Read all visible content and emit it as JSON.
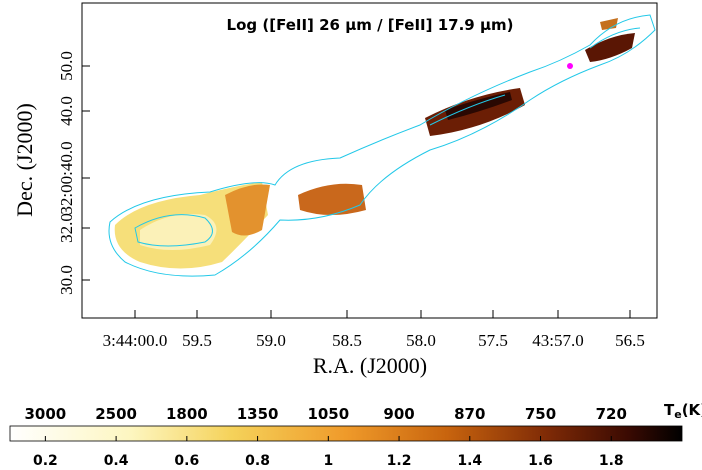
{
  "chart_data": {
    "type": "image",
    "title": "Log ([FeII] 26 μm / [FeII] 17.9 μm)",
    "x_label": "R.A. (J2000)",
    "y_label": "Dec. (J2000)",
    "xtick_labels": [
      "3:44:00.0",
      "59.5",
      "59.0",
      "58.5",
      "58.0",
      "57.5",
      "43:57.0",
      "56.5"
    ],
    "ytick_labels": [
      "30.0",
      "32.0",
      "32:00:40.0",
      "40.0",
      "50.0"
    ],
    "colorbar": {
      "clim": [
        0.1,
        2.0
      ],
      "ticks": [
        0.2,
        0.4,
        0.6,
        0.8,
        1,
        1.2,
        1.4,
        1.6,
        1.8
      ],
      "te_labels": [
        "3000",
        "2500",
        "1800",
        "1350",
        "1050",
        "900",
        "870",
        "750",
        "720"
      ],
      "te_symbol": "T",
      "te_subscript": "e",
      "te_unit": "(K)"
    }
  }
}
